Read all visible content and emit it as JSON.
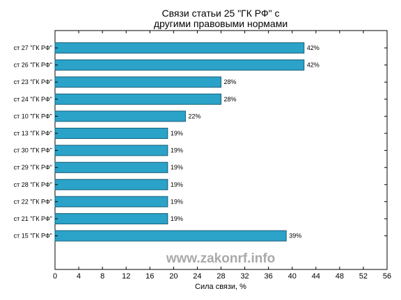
{
  "chart_data": {
    "type": "bar",
    "orientation": "horizontal",
    "title_lines": [
      "Связи статьи 25 \"ГК РФ\" с",
      "другими правовыми нормами"
    ],
    "xlabel": "Сила связи, %",
    "ylabel": "",
    "xlim": [
      0,
      56
    ],
    "xticks": [
      0,
      4,
      8,
      12,
      16,
      20,
      24,
      28,
      32,
      36,
      40,
      44,
      48,
      52,
      56
    ],
    "categories": [
      "ст 27 \"ГК РФ\"",
      "ст 26 \"ГК РФ\"",
      "ст 23 \"ГК РФ\"",
      "ст 24 \"ГК РФ\"",
      "ст 10 \"ГК РФ\"",
      "ст 13 \"ГК РФ\"",
      "ст 30 \"ГК РФ\"",
      "ст 29 \"ГК РФ\"",
      "ст 28 \"ГК РФ\"",
      "ст 22 \"ГК РФ\"",
      "ст 21 \"ГК РФ\"",
      "ст 15 \"ГК РФ\""
    ],
    "values": [
      42,
      42,
      28,
      28,
      22,
      19,
      19,
      19,
      19,
      19,
      19,
      39
    ],
    "value_labels": [
      "42%",
      "42%",
      "28%",
      "28%",
      "22%",
      "19%",
      "19%",
      "19%",
      "19%",
      "19%",
      "19%",
      "39%"
    ],
    "grid": false,
    "bar_color": "#2ba2c8",
    "bar_edge_color": "#1a5f78"
  },
  "watermark": "www.zakonrf.info"
}
